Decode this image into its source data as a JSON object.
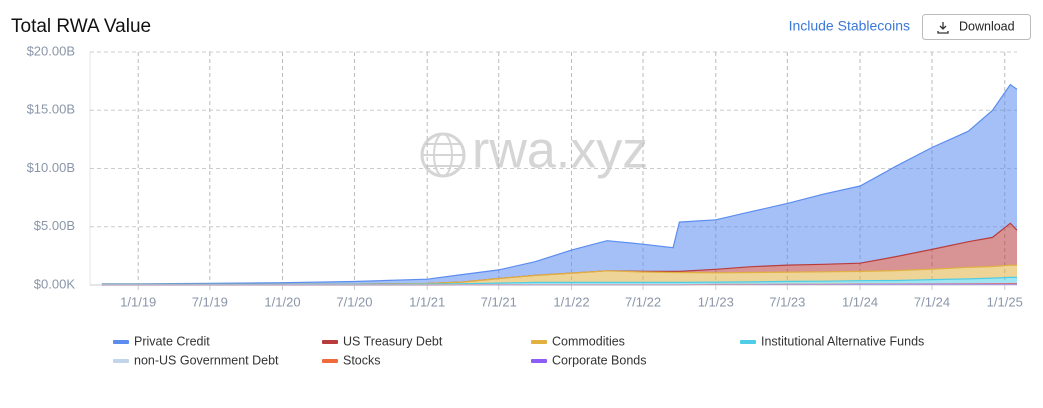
{
  "header": {
    "title": "Total RWA Value",
    "link": "Include Stablecoins",
    "button": "Download"
  },
  "chart_data": {
    "type": "stacked_area",
    "watermark": "rwa.xyz",
    "x": [
      "10/1/18",
      "1/1/19",
      "7/1/19",
      "1/1/20",
      "7/1/20",
      "1/1/21",
      "4/1/21",
      "7/1/21",
      "10/1/21",
      "1/1/22",
      "4/1/22",
      "7/1/22",
      "9/15/22",
      "10/1/22",
      "1/1/23",
      "4/1/23",
      "7/1/23",
      "10/1/23",
      "1/1/24",
      "4/1/24",
      "7/1/24",
      "10/1/24",
      "12/1/24",
      "1/15/25",
      "2/1/25"
    ],
    "xlim": [
      "9/1/18",
      "2/1/25"
    ],
    "xticks": [
      "1/1/19",
      "7/1/19",
      "1/1/20",
      "7/1/20",
      "1/1/21",
      "7/1/21",
      "1/1/22",
      "7/1/22",
      "1/1/23",
      "7/1/23",
      "1/1/24",
      "7/1/24",
      "1/1/25"
    ],
    "ylim": [
      0,
      20
    ],
    "yticks": [
      {
        "value": 0,
        "label": "$0.00K"
      },
      {
        "value": 5,
        "label": "$5.00B"
      },
      {
        "value": 10,
        "label": "$10.00B"
      },
      {
        "value": 15,
        "label": "$15.00B"
      },
      {
        "value": 20,
        "label": "$20.00B"
      }
    ],
    "grid": true,
    "series": [
      {
        "name": "Private Credit",
        "color": "#5b8def",
        "values": [
          0.05,
          0.05,
          0.1,
          0.14,
          0.22,
          0.37,
          0.64,
          0.74,
          1.18,
          1.98,
          2.58,
          2.33,
          2.03,
          4.23,
          4.25,
          4.73,
          5.29,
          6.02,
          6.63,
          7.76,
          8.74,
          9.48,
          10.91,
          11.9,
          12.1
        ]
      },
      {
        "name": "US Treasury Debt",
        "color": "#b83c3c",
        "values": [
          0,
          0,
          0,
          0,
          0,
          0,
          0,
          0,
          0,
          0,
          0,
          0.05,
          0.1,
          0.1,
          0.3,
          0.5,
          0.6,
          0.65,
          0.7,
          1.2,
          1.7,
          2.2,
          2.5,
          3.6,
          3.0
        ]
      },
      {
        "name": "Commodities",
        "color": "#e0b040",
        "values": [
          0,
          0,
          0,
          0,
          0.02,
          0.05,
          0.15,
          0.4,
          0.6,
          0.8,
          1.0,
          0.9,
          0.85,
          0.85,
          0.8,
          0.8,
          0.8,
          0.8,
          0.8,
          0.85,
          0.9,
          1.0,
          1.0,
          1.05,
          1.05
        ]
      },
      {
        "name": "Institutional Alternative Funds",
        "color": "#4fcde6",
        "values": [
          0.05,
          0.05,
          0.05,
          0.06,
          0.06,
          0.08,
          0.1,
          0.15,
          0.2,
          0.2,
          0.2,
          0.2,
          0.2,
          0.2,
          0.2,
          0.22,
          0.25,
          0.25,
          0.28,
          0.3,
          0.35,
          0.4,
          0.45,
          0.5,
          0.5
        ]
      },
      {
        "name": "non-US Government Debt",
        "color": "#c3d5ea",
        "values": [
          0,
          0,
          0,
          0,
          0,
          0,
          0,
          0,
          0,
          0,
          0,
          0,
          0,
          0,
          0.01,
          0.01,
          0.01,
          0.02,
          0.02,
          0.02,
          0.03,
          0.03,
          0.04,
          0.04,
          0.04
        ]
      },
      {
        "name": "Stocks",
        "color": "#f06a3a",
        "values": [
          0,
          0,
          0,
          0,
          0,
          0,
          0.01,
          0.01,
          0.02,
          0.02,
          0.02,
          0.02,
          0.02,
          0.02,
          0.02,
          0.02,
          0.02,
          0.03,
          0.03,
          0.03,
          0.03,
          0.04,
          0.04,
          0.05,
          0.05
        ]
      },
      {
        "name": "Corporate Bonds",
        "color": "#8b5cf6",
        "values": [
          0,
          0,
          0,
          0,
          0,
          0,
          0,
          0,
          0,
          0,
          0,
          0,
          0,
          0,
          0.02,
          0.02,
          0.03,
          0.03,
          0.04,
          0.04,
          0.05,
          0.05,
          0.06,
          0.06,
          0.06
        ]
      }
    ]
  }
}
